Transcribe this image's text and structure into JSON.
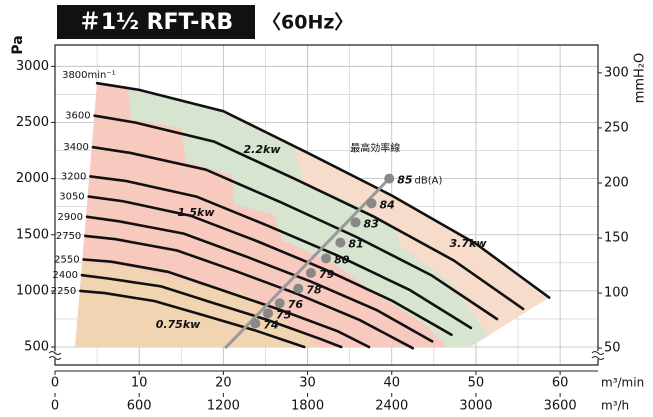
{
  "chart_data": {
    "type": "line",
    "title": "＃1½ RFT-RB",
    "subtitle": "〈60Hz〉",
    "y_label": "Pa",
    "y2_label": "mmH₂O",
    "x_label": "m³/min",
    "x2_label": "m³/h",
    "xlim": [
      0,
      64.5
    ],
    "xticks": [
      0,
      10,
      20,
      30,
      40,
      50,
      60
    ],
    "xminor": [
      5,
      15,
      25,
      35,
      45,
      55
    ],
    "x2lim": [
      0,
      3870
    ],
    "x2ticks": [
      0,
      600,
      1200,
      1800,
      2400,
      3000,
      3600
    ],
    "ylim": [
      340,
      3190
    ],
    "yticks": [
      500,
      1000,
      1500,
      2000,
      2500,
      3000
    ],
    "yminor": [
      750,
      1250,
      1750,
      2250,
      2750
    ],
    "y2lim": [
      34.7,
      325.3
    ],
    "y2ticks": [
      50,
      100,
      150,
      200,
      250,
      300
    ],
    "grid": true,
    "regions": [
      {
        "name": "3.7kw",
        "color": "#f7dccb",
        "x": [
          2.4,
          5,
          10,
          20,
          30,
          40,
          50,
          58.7,
          49.3
        ],
        "values": [
          500,
          2850,
          2790,
          2600,
          2230,
          1850,
          1420,
          940,
          500
        ]
      },
      {
        "name": "2.2kw",
        "color": "#d7e4d0",
        "x": [
          2.4,
          5,
          10,
          20,
          28.5,
          29.5,
          35,
          40.5,
          41,
          47,
          51.5,
          49.3
        ],
        "values": [
          500,
          2850,
          2790,
          2600,
          2290,
          1960,
          1800,
          1560,
          1400,
          1080,
          600,
          500
        ]
      },
      {
        "name": "1.5kw",
        "color": "#f7c9bf",
        "x": [
          2.4,
          5,
          8.7,
          9,
          15,
          15.5,
          21,
          21.3,
          26,
          27,
          33,
          38,
          44,
          46.5
        ],
        "values": [
          500,
          2850,
          2810,
          2530,
          2450,
          2150,
          2030,
          1770,
          1680,
          1450,
          1250,
          980,
          700,
          500
        ]
      },
      {
        "name": "0.75kw",
        "color": "#f1d5b3",
        "x": [
          2.4,
          3.3,
          10,
          17,
          22,
          26,
          31.5
        ],
        "values": [
          500,
          1260,
          1190,
          1050,
          1000,
          800,
          500
        ]
      }
    ],
    "series": [
      {
        "name": "3800min⁻¹",
        "color": "#111111",
        "x": [
          5,
          10,
          20,
          30,
          40,
          50,
          58.7
        ],
        "values": [
          2850,
          2790,
          2600,
          2230,
          1850,
          1420,
          940
        ]
      },
      {
        "name": "3600",
        "color": "#111111",
        "x": [
          4.7,
          9.5,
          18.9,
          28.4,
          37.9,
          47.4,
          55.6
        ],
        "values": [
          2560,
          2500,
          2330,
          2000,
          1660,
          1270,
          840
        ]
      },
      {
        "name": "3400",
        "color": "#111111",
        "x": [
          4.5,
          8.9,
          17.9,
          26.8,
          35.8,
          44.7,
          52.5
        ],
        "values": [
          2280,
          2230,
          2080,
          1790,
          1480,
          1140,
          750
        ]
      },
      {
        "name": "3200",
        "color": "#111111",
        "x": [
          4.2,
          8.4,
          16.8,
          25.3,
          33.7,
          42.1,
          49.4
        ],
        "values": [
          2020,
          1980,
          1840,
          1580,
          1310,
          1010,
          670
        ]
      },
      {
        "name": "3050",
        "color": "#111111",
        "x": [
          4.0,
          8.0,
          16.1,
          24.1,
          32.1,
          40.1,
          47.1
        ],
        "values": [
          1840,
          1800,
          1670,
          1440,
          1190,
          910,
          610
        ]
      },
      {
        "name": "2900",
        "color": "#111111",
        "x": [
          3.8,
          7.6,
          15.3,
          22.9,
          30.5,
          38.2,
          44.8
        ],
        "values": [
          1660,
          1620,
          1510,
          1300,
          1080,
          830,
          550
        ]
      },
      {
        "name": "2750",
        "color": "#111111",
        "x": [
          3.6,
          7.2,
          14.5,
          21.7,
          28.9,
          36.2,
          42.5
        ],
        "values": [
          1490,
          1460,
          1360,
          1170,
          970,
          740,
          490
        ]
      },
      {
        "name": "2550",
        "color": "#111111",
        "x": [
          3.4,
          6.7,
          13.4,
          20.1,
          26.8,
          33.6,
          37.3
        ],
        "values": [
          1280,
          1260,
          1170,
          1000,
          830,
          640,
          500
        ]
      },
      {
        "name": "2400",
        "color": "#111111",
        "x": [
          3.2,
          6.3,
          12.6,
          18.9,
          25.3,
          31.6,
          34
        ],
        "values": [
          1140,
          1110,
          1040,
          890,
          740,
          570,
          500
        ]
      },
      {
        "name": "2250",
        "color": "#111111",
        "x": [
          3.0,
          5.9,
          11.8,
          17.8,
          23.7,
          29.6
        ],
        "values": [
          1000,
          980,
          910,
          780,
          650,
          500
        ]
      }
    ],
    "efficiency": {
      "name": "最高効率線",
      "color": "#9a9a9a",
      "line_x": [
        20.2,
        39.7
      ],
      "line_values": [
        490,
        2000
      ],
      "x": [
        23.8,
        25.3,
        26.7,
        28.9,
        30.4,
        32.2,
        33.9,
        35.7,
        37.6,
        39.7
      ],
      "values": [
        710,
        800,
        890,
        1020,
        1160,
        1290,
        1430,
        1610,
        1780,
        2000
      ],
      "labels": [
        74,
        75,
        76,
        78,
        79,
        80,
        81,
        83,
        84,
        85
      ],
      "unit": "dB(A)"
    }
  }
}
